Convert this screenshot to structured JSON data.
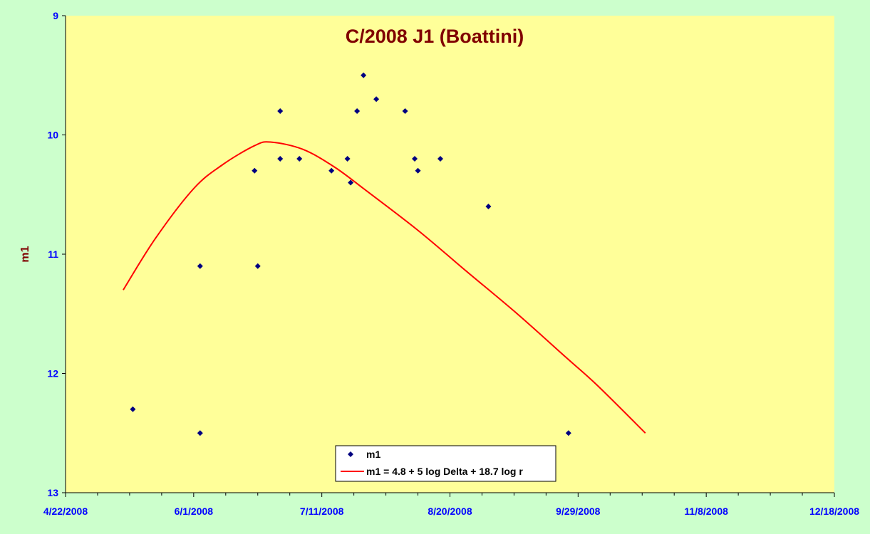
{
  "chart_data": {
    "type": "scatter",
    "title": "C/2008 J1 (Boattini)",
    "xlabel": "",
    "ylabel": "m1",
    "x_tick_labels": [
      "4/22/2008",
      "6/1/2008",
      "7/11/2008",
      "8/20/2008",
      "9/29/2008",
      "11/8/2008",
      "12/18/2008"
    ],
    "xlim": [
      "2008-04-22",
      "2008-12-18"
    ],
    "y_tick_labels": [
      "9",
      "10",
      "11",
      "12",
      "13"
    ],
    "ylim": [
      9,
      13
    ],
    "y_inverted": true,
    "grid": false,
    "legend_position": "bottom-center",
    "series": [
      {
        "name": "m1",
        "kind": "scatter",
        "marker": "diamond",
        "color": "#000080",
        "points": [
          {
            "x": "2008-05-13",
            "y": 12.3
          },
          {
            "x": "2008-06-03",
            "y": 11.1
          },
          {
            "x": "2008-06-03",
            "y": 12.5
          },
          {
            "x": "2008-06-20",
            "y": 10.3
          },
          {
            "x": "2008-06-21",
            "y": 11.1
          },
          {
            "x": "2008-06-28",
            "y": 9.8
          },
          {
            "x": "2008-06-28",
            "y": 10.2
          },
          {
            "x": "2008-07-04",
            "y": 10.2
          },
          {
            "x": "2008-07-14",
            "y": 10.3
          },
          {
            "x": "2008-07-19",
            "y": 10.2
          },
          {
            "x": "2008-07-20",
            "y": 10.4
          },
          {
            "x": "2008-07-22",
            "y": 9.8
          },
          {
            "x": "2008-07-24",
            "y": 9.5
          },
          {
            "x": "2008-07-28",
            "y": 9.7
          },
          {
            "x": "2008-08-06",
            "y": 9.8
          },
          {
            "x": "2008-08-09",
            "y": 10.2
          },
          {
            "x": "2008-08-10",
            "y": 10.3
          },
          {
            "x": "2008-08-17",
            "y": 10.2
          },
          {
            "x": "2008-09-01",
            "y": 10.6
          },
          {
            "x": "2008-09-26",
            "y": 12.5
          }
        ]
      },
      {
        "name": "m1 = 4.8 + 5 log Delta + 18.7 log r",
        "kind": "line",
        "color": "#ff0000",
        "points": [
          {
            "x": "2008-05-10",
            "y": 11.3
          },
          {
            "x": "2008-05-20",
            "y": 10.87
          },
          {
            "x": "2008-06-01",
            "y": 10.45
          },
          {
            "x": "2008-06-10",
            "y": 10.25
          },
          {
            "x": "2008-06-20",
            "y": 10.09
          },
          {
            "x": "2008-06-25",
            "y": 10.06
          },
          {
            "x": "2008-07-05",
            "y": 10.12
          },
          {
            "x": "2008-07-15",
            "y": 10.27
          },
          {
            "x": "2008-07-25",
            "y": 10.47
          },
          {
            "x": "2008-08-10",
            "y": 10.8
          },
          {
            "x": "2008-08-25",
            "y": 11.14
          },
          {
            "x": "2008-09-10",
            "y": 11.5
          },
          {
            "x": "2008-09-25",
            "y": 11.86
          },
          {
            "x": "2008-10-05",
            "y": 12.1
          },
          {
            "x": "2008-10-20",
            "y": 12.5
          }
        ]
      }
    ]
  }
}
